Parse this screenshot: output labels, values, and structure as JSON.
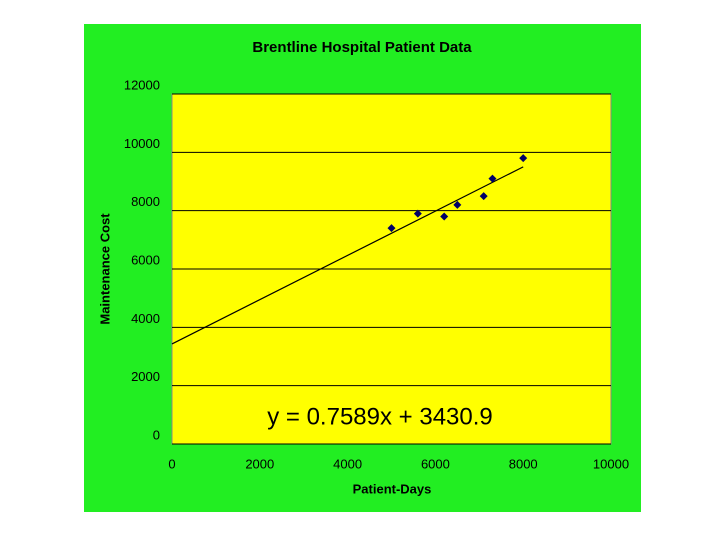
{
  "chart_data": {
    "type": "scatter",
    "title": "Brentline Hospital Patient Data",
    "x_label": "Patient-Days",
    "y_label": "Maintenance Cost",
    "x": [
      5000,
      5600,
      6200,
      6500,
      7100,
      7300,
      8000
    ],
    "values": [
      7400,
      7900,
      7800,
      8200,
      8500,
      9100,
      9800
    ],
    "color": "#000066",
    "xlim": [
      0,
      10000
    ],
    "xticks": [
      0,
      2000,
      4000,
      6000,
      8000,
      10000
    ],
    "ylim": [
      0,
      12000
    ],
    "yticks": [
      0,
      2000,
      4000,
      6000,
      8000,
      10000,
      12000
    ],
    "grid": true,
    "trendline": {
      "slope": 0.7589,
      "intercept": 3430.9,
      "xlim": [
        0,
        8000
      ]
    },
    "annotation": "y = 0.7589x + 3430.9"
  }
}
